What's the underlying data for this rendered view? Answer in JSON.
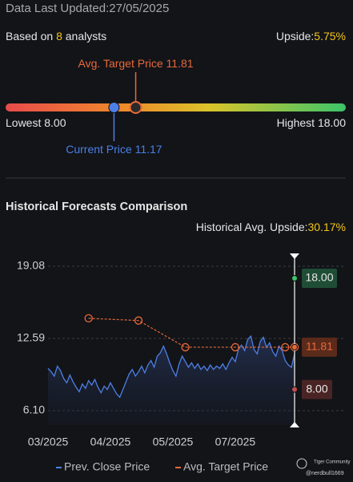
{
  "header": {
    "updated": "Data Last Updated:27/05/2025",
    "based_prefix": "Based on",
    "analysts": 8,
    "based_suffix": "analysts",
    "upside_label": "Upside:",
    "upside": "5.75%"
  },
  "range": {
    "target_label": "Avg. Target Price",
    "target": 11.81,
    "lowest_label": "Lowest",
    "low": {
      "value": 8,
      "label": "8.00"
    },
    "highest_label": "Highest",
    "high": {
      "value": 18,
      "label": "18.00"
    },
    "current_label": "Current Price",
    "current": 11.17
  },
  "chart_data": {
    "type": "line",
    "title": "Historical Forecasts Comparison",
    "subtitle_label": "Historical Avg. Upside:",
    "subtitle_value": "30.17%",
    "xlim": [
      0,
      79
    ],
    "xticks": [
      {
        "value": 0,
        "label": "03/2025"
      },
      {
        "value": 20,
        "label": "04/2025"
      },
      {
        "value": 40,
        "label": "05/2025"
      },
      {
        "value": 60,
        "label": "07/2025"
      }
    ],
    "ylim": [
      6.1,
      19.08
    ],
    "yticks": [
      19.08,
      12.59,
      {
        "value": 6.1,
        "label": "6.10"
      }
    ],
    "grid": true,
    "series": [
      {
        "name": "Prev. Close Price",
        "color": "#4d7fe6",
        "x": [
          0,
          1,
          2,
          3,
          4,
          5,
          6,
          7,
          8,
          9,
          10,
          11,
          12,
          13,
          14,
          15,
          16,
          17,
          18,
          19,
          20,
          21,
          22,
          23,
          24,
          25,
          26,
          27,
          28,
          29,
          30,
          31,
          32,
          33,
          34,
          35,
          36,
          37,
          38,
          39,
          40,
          41,
          42,
          43,
          44,
          45,
          46,
          47,
          48,
          49,
          50,
          51,
          52,
          53,
          54,
          55,
          56,
          57,
          58,
          59,
          60,
          61,
          62,
          63,
          64,
          65,
          66,
          67,
          68,
          69,
          70,
          71,
          72,
          73,
          74,
          75,
          76,
          77,
          78,
          79
        ],
        "values": [
          9.9,
          9.6,
          9.2,
          10.1,
          9.7,
          9.0,
          8.6,
          9.3,
          8.7,
          8.2,
          7.8,
          8.5,
          8.1,
          8.8,
          8.4,
          8.9,
          8.2,
          7.7,
          8.3,
          8.0,
          8.6,
          8.1,
          7.6,
          7.3,
          8.0,
          8.7,
          9.4,
          9.8,
          9.2,
          9.6,
          10.1,
          9.5,
          10.2,
          10.6,
          10.0,
          11.0,
          11.3,
          11.9,
          11.2,
          10.4,
          9.7,
          9.2,
          10.3,
          11.0,
          10.5,
          10.0,
          10.4,
          9.9,
          10.3,
          9.8,
          10.1,
          9.7,
          10.2,
          9.8,
          10.1,
          9.9,
          10.3,
          9.8,
          10.4,
          10.9,
          10.5,
          11.6,
          12.0,
          11.5,
          12.5,
          12.8,
          11.6,
          11.2,
          12.3,
          12.7,
          11.8,
          12.2,
          11.4,
          11.0,
          11.9,
          11.5,
          10.6,
          10.2,
          10.0,
          11.2
        ]
      },
      {
        "name": "Avg. Target Price",
        "color": "#e8693a",
        "x": [
          13,
          29,
          44,
          60,
          76,
          79
        ],
        "values": [
          14.4,
          14.2,
          11.8,
          11.8,
          11.8,
          11.81
        ]
      }
    ]
  },
  "watermark": {
    "brand": "Tiger Community",
    "user": "@nerdbull1669"
  }
}
